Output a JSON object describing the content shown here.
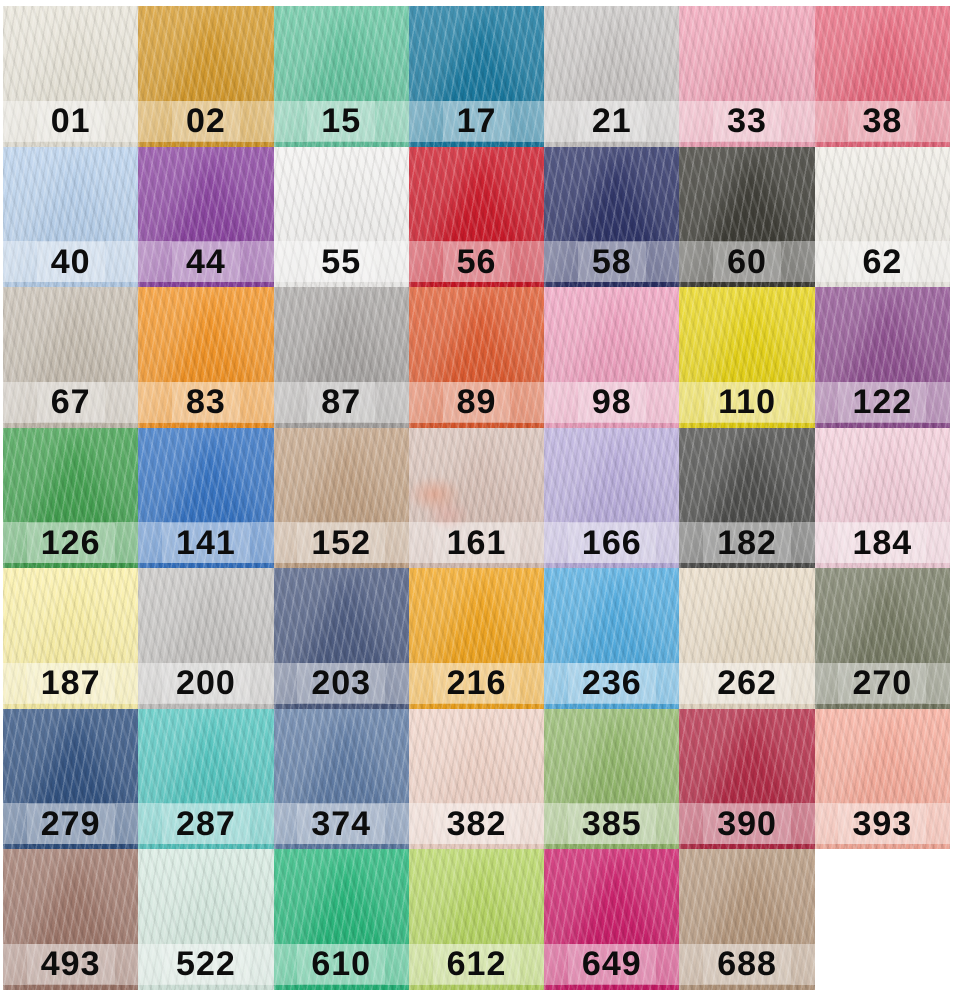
{
  "grid": {
    "columns": 7,
    "rows": 7,
    "cells": [
      {
        "code": "01",
        "color": "#e8e4d8"
      },
      {
        "code": "02",
        "color": "#d69a2a"
      },
      {
        "code": "15",
        "color": "#63c59f"
      },
      {
        "code": "17",
        "color": "#16789f"
      },
      {
        "code": "21",
        "color": "#c9c6c4"
      },
      {
        "code": "33",
        "color": "#f1a2b7"
      },
      {
        "code": "38",
        "color": "#e8687d"
      },
      {
        "code": "40",
        "color": "#b7d0ec"
      },
      {
        "code": "44",
        "color": "#8a42a0"
      },
      {
        "code": "55",
        "color": "#f3f2f0"
      },
      {
        "code": "56",
        "color": "#cd1626"
      },
      {
        "code": "58",
        "color": "#2b3166"
      },
      {
        "code": "60",
        "color": "#3b3a33"
      },
      {
        "code": "62",
        "color": "#f0ede6"
      },
      {
        "code": "67",
        "color": "#c6bdb0"
      },
      {
        "code": "83",
        "color": "#f49322"
      },
      {
        "code": "87",
        "color": "#a8a5a3"
      },
      {
        "code": "89",
        "color": "#e05a2e"
      },
      {
        "code": "98",
        "color": "#efa0bf"
      },
      {
        "code": "110",
        "color": "#e8d414"
      },
      {
        "code": "122",
        "color": "#8e4f90"
      },
      {
        "code": "126",
        "color": "#41a04e"
      },
      {
        "code": "141",
        "color": "#3372c3"
      },
      {
        "code": "152",
        "color": "#c2a284"
      },
      {
        "code": "161",
        "color": "#d8c0b6"
      },
      {
        "code": "166",
        "color": "#b9addc"
      },
      {
        "code": "182",
        "color": "#4b4b49"
      },
      {
        "code": "184",
        "color": "#f3cdd9"
      },
      {
        "code": "187",
        "color": "#fbf0a5"
      },
      {
        "code": "200",
        "color": "#c5c3c1"
      },
      {
        "code": "203",
        "color": "#4b5a80"
      },
      {
        "code": "216",
        "color": "#f2a51d"
      },
      {
        "code": "236",
        "color": "#4fabe0"
      },
      {
        "code": "262",
        "color": "#e8dac4"
      },
      {
        "code": "270",
        "color": "#767a63"
      },
      {
        "code": "279",
        "color": "#2f5080"
      },
      {
        "code": "287",
        "color": "#53c6c0"
      },
      {
        "code": "374",
        "color": "#5d7aa4"
      },
      {
        "code": "382",
        "color": "#f0d2c6"
      },
      {
        "code": "385",
        "color": "#91b76a"
      },
      {
        "code": "390",
        "color": "#b22743"
      },
      {
        "code": "393",
        "color": "#f7ab9a"
      },
      {
        "code": "493",
        "color": "#9e7669"
      },
      {
        "code": "522",
        "color": "#d6eae0"
      },
      {
        "code": "610",
        "color": "#25b77a"
      },
      {
        "code": "612",
        "color": "#b6d662"
      },
      {
        "code": "649",
        "color": "#cc1b69"
      },
      {
        "code": "688",
        "color": "#b5977c"
      },
      {
        "code": "",
        "color": "#ffffff",
        "empty": true
      }
    ]
  },
  "style": {
    "page_background": "#ffffff",
    "label_band_color": "rgba(255,255,255,0.38)",
    "code_text_color": "#0d0d0d",
    "watermark_color": "#e97b52"
  },
  "icons": {
    "watermark": "watermark-smudge"
  }
}
